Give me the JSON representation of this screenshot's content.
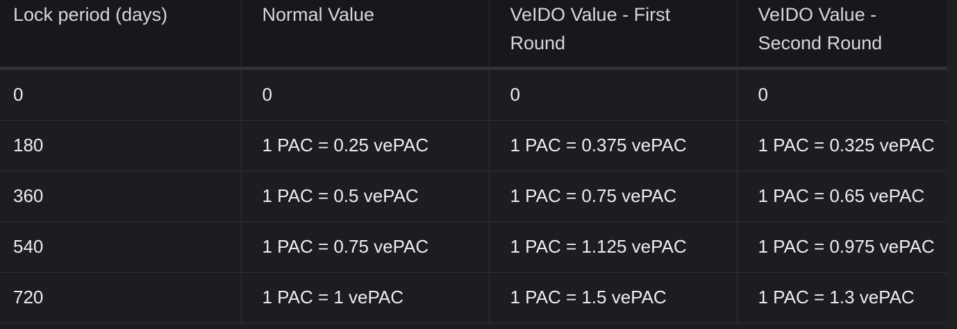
{
  "table": {
    "headers": [
      "Lock period (days)",
      "Normal Value",
      "VeIDO Value - First Round",
      "VeIDO Value - Second Round"
    ],
    "rows": [
      [
        "0",
        "0",
        "0",
        "0"
      ],
      [
        "180",
        "1 PAC = 0.25 vePAC",
        "1 PAC = 0.375 vePAC",
        "1 PAC = 0.325 vePAC"
      ],
      [
        "360",
        "1 PAC = 0.5 vePAC",
        "1 PAC = 0.75 vePAC",
        "1 PAC = 0.65 vePAC"
      ],
      [
        "540",
        "1 PAC = 0.75 vePAC",
        "1 PAC = 1.125 vePAC",
        "1 PAC = 0.975 vePAC"
      ],
      [
        "720",
        "1 PAC = 1 vePAC",
        "1 PAC = 1.5 vePAC",
        "1 PAC = 1.3 vePAC"
      ]
    ]
  }
}
